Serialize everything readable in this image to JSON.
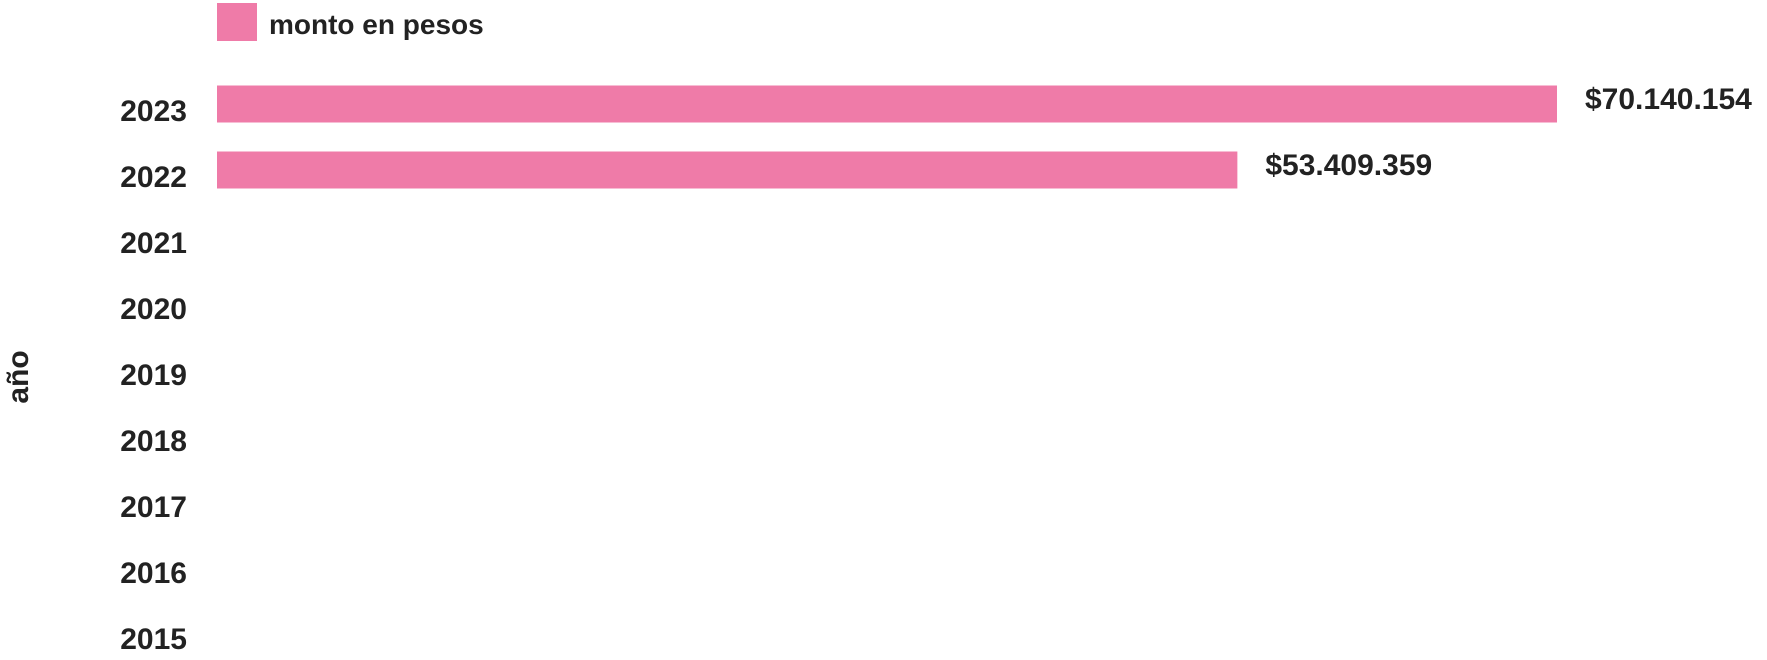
{
  "chart_data": {
    "type": "bar",
    "orientation": "horizontal",
    "title": "",
    "xlabel": "",
    "ylabel": "año",
    "categories": [
      "2023",
      "2022",
      "2021",
      "2020",
      "2019",
      "2018",
      "2017",
      "2016",
      "2015"
    ],
    "series": [
      {
        "name": "monto en pesos",
        "color": "#ef7ba8",
        "values": [
          70140154,
          53409359,
          null,
          null,
          null,
          null,
          null,
          null,
          null
        ],
        "labels": [
          "$70.140.154",
          "$53.409.359",
          "",
          "",
          "",
          "",
          "",
          "",
          ""
        ]
      }
    ],
    "legend": {
      "position": "top-left"
    },
    "grid": false,
    "xaxis_visible": false
  }
}
